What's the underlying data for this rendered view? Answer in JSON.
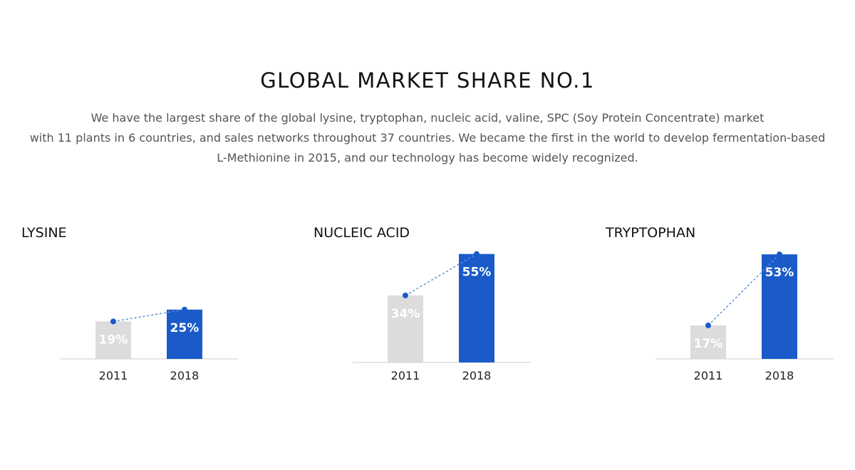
{
  "header": {
    "title": "GLOBAL MARKET SHARE NO.1",
    "description": [
      "We have the largest share of the global lysine, tryptophan, nucleic acid, valine, SPC (Soy Protein Concentrate) market",
      "with 11 plants in 6 countries, and sales networks throughout 37 countries. We became the first in the world to develop fermentation-based",
      "L-Methionine in 2015, and our technology has become widely recognized."
    ]
  },
  "colors": {
    "bar_old": "#dcdcdc",
    "bar_new": "#1a5bc9",
    "dot": "#1a5bc9",
    "connector": "#5b8fd6",
    "baseline": "#cccccc"
  },
  "chart_data": [
    {
      "type": "bar",
      "title": "LYSINE",
      "categories": [
        "2011",
        "2018"
      ],
      "values": [
        19,
        25
      ],
      "labels": [
        "19%",
        "25%"
      ],
      "unit": "%"
    },
    {
      "type": "bar",
      "title": "NUCLEIC ACID",
      "categories": [
        "2011",
        "2018"
      ],
      "values": [
        34,
        55
      ],
      "labels": [
        "34%",
        "55%"
      ],
      "unit": "%"
    },
    {
      "type": "bar",
      "title": "TRYPTOPHAN",
      "categories": [
        "2011",
        "2018"
      ],
      "values": [
        17,
        53
      ],
      "labels": [
        "17%",
        "53%"
      ],
      "unit": "%"
    }
  ]
}
